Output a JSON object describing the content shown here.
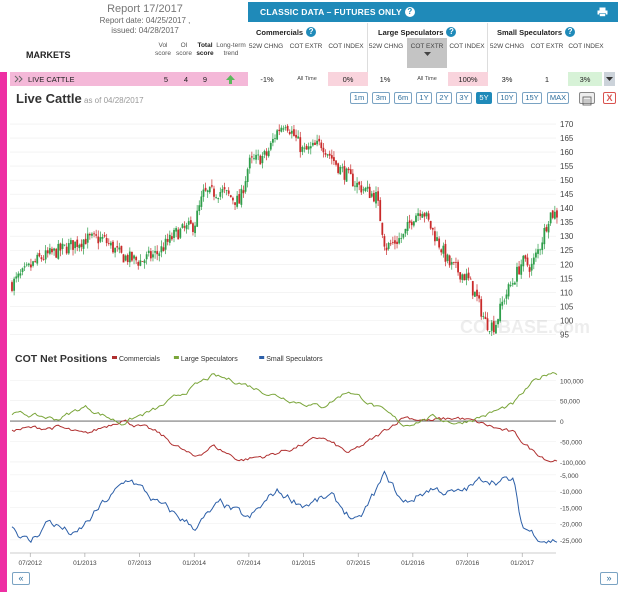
{
  "report": {
    "title": "Report 17/2017",
    "report_date": "Report date: 04/25/2017 ,",
    "issued": "issued: 04/28/2017"
  },
  "markets_label": "MARKETS",
  "metric_headers": [
    "Vol score",
    "OI score",
    "Total score",
    "Long-term trend"
  ],
  "classic_title": "CLASSIC DATA – FUTURES ONLY",
  "help_glyph": "?",
  "groups": [
    {
      "title": "Commercials",
      "cols": [
        "52W CHNG",
        "COT EXTR",
        "COT INDEX"
      ]
    },
    {
      "title": "Large Speculators",
      "cols": [
        "52W CHNG",
        "COT EXTR",
        "COT INDEX"
      ]
    },
    {
      "title": "Small Speculators",
      "cols": [
        "52W CHNG",
        "COT EXTR",
        "COT INDEX"
      ]
    }
  ],
  "row": {
    "name": "LIVE CATTLE",
    "vol": "5",
    "oi": "4",
    "total": "9",
    "trend_icon": "arrow-up-icon",
    "comm_chng": "-1%",
    "comm_extr": "All Time",
    "comm_index": "0%",
    "lspec_chng": "1%",
    "lspec_extr": "All Time",
    "lspec_index": "100%",
    "sspec_chng": "3%",
    "sspec_extr": "1",
    "sspec_index": "3%",
    "colors": {
      "row_name_bg": "#f4b8d8",
      "index_low_bg": "#f9d4dd",
      "index_high_bg": "#f9d4dd",
      "sspec_index_bg": "#d7f2d7",
      "trend_arrow": "#5cb85c"
    }
  },
  "chart_title": "Live Cattle",
  "as_of": "as of 04/28/2017",
  "range_buttons": [
    "1m",
    "3m",
    "6m",
    "1Y",
    "2Y",
    "3Y",
    "5Y",
    "10Y",
    "15Y",
    "MAX"
  ],
  "active_range": "5Y",
  "close_glyph": "X",
  "watermark": "COTBASE.com",
  "nav": {
    "prev": "«",
    "next": "»"
  },
  "chart_data": [
    {
      "type": "candlestick",
      "title": "Live Cattle",
      "ylim": [
        93,
        175
      ],
      "yticks": [
        95,
        100,
        105,
        110,
        115,
        120,
        125,
        130,
        135,
        140,
        145,
        150,
        155,
        160,
        165,
        170
      ],
      "colors": {
        "up": "#2e9e4a",
        "down": "#c92a2a"
      },
      "x_weeks": {
        "start": "2012-05",
        "end": "2017-04"
      },
      "close_anchors": [
        [
          "2012-05",
          113
        ],
        [
          "2012-08",
          122
        ],
        [
          "2012-11",
          126
        ],
        [
          "2013-01",
          129
        ],
        [
          "2013-03",
          129
        ],
        [
          "2013-05",
          123
        ],
        [
          "2013-07",
          121
        ],
        [
          "2013-09",
          124
        ],
        [
          "2013-11",
          131
        ],
        [
          "2014-01",
          134
        ],
        [
          "2014-02",
          145
        ],
        [
          "2014-04",
          146
        ],
        [
          "2014-06",
          142
        ],
        [
          "2014-07",
          156
        ],
        [
          "2014-09",
          159
        ],
        [
          "2014-10",
          167
        ],
        [
          "2014-11",
          171
        ],
        [
          "2015-01",
          160
        ],
        [
          "2015-03",
          163
        ],
        [
          "2015-05",
          154
        ],
        [
          "2015-07",
          148
        ],
        [
          "2015-09",
          144
        ],
        [
          "2015-10",
          126
        ],
        [
          "2015-12",
          130
        ],
        [
          "2016-01",
          137
        ],
        [
          "2016-02",
          140
        ],
        [
          "2016-03",
          133
        ],
        [
          "2016-05",
          120
        ],
        [
          "2016-07",
          115
        ],
        [
          "2016-08",
          108
        ],
        [
          "2016-09",
          99
        ],
        [
          "2016-10",
          98
        ],
        [
          "2016-11",
          108
        ],
        [
          "2016-12",
          114
        ],
        [
          "2017-01",
          121
        ],
        [
          "2017-02",
          119
        ],
        [
          "2017-03",
          127
        ],
        [
          "2017-04",
          138
        ]
      ]
    },
    {
      "type": "line",
      "title": "COT Net Positions",
      "legend": [
        "Commercials",
        "Large Speculators",
        "Small Speculators"
      ],
      "series_colors": [
        "#b03030",
        "#7aa53a",
        "#2c5fa8"
      ],
      "upper_ylim": [
        -110000,
        130000
      ],
      "upper_yticks": [
        100000,
        50000,
        0,
        -50000,
        -100000
      ],
      "upper_ytick_labels": [
        "100,000",
        "50,000",
        "0",
        "-50,000",
        "-100,000"
      ],
      "lower_ylim": [
        -27500,
        -3500
      ],
      "lower_yticks": [
        -5000,
        -10000,
        -15000,
        -20000,
        -25000
      ],
      "lower_ytick_labels": [
        "-5,000",
        "-10,000",
        "-15,000",
        "-20,000",
        "-25,000"
      ],
      "x_tick_labels": [
        "07/2012",
        "01/2013",
        "07/2013",
        "01/2014",
        "07/2014",
        "01/2015",
        "07/2015",
        "01/2016",
        "07/2016",
        "01/2017"
      ],
      "x_tick_dates": [
        "2012-07",
        "2013-01",
        "2013-07",
        "2014-01",
        "2014-07",
        "2015-01",
        "2015-07",
        "2016-01",
        "2016-07",
        "2017-01"
      ],
      "series": [
        {
          "name": "Commercials",
          "anchors": [
            [
              "2012-05",
              -20000
            ],
            [
              "2012-10",
              -15000
            ],
            [
              "2013-01",
              -35000
            ],
            [
              "2013-05",
              5000
            ],
            [
              "2013-09",
              -30000
            ],
            [
              "2014-01",
              -90000
            ],
            [
              "2014-03",
              -60000
            ],
            [
              "2014-06",
              -95000
            ],
            [
              "2014-09",
              -85000
            ],
            [
              "2014-12",
              -65000
            ],
            [
              "2015-03",
              -40000
            ],
            [
              "2015-06",
              -80000
            ],
            [
              "2015-09",
              -40000
            ],
            [
              "2015-12",
              12000
            ],
            [
              "2016-03",
              0
            ],
            [
              "2016-06",
              8000
            ],
            [
              "2016-09",
              -10000
            ],
            [
              "2016-12",
              -30000
            ],
            [
              "2017-02",
              -70000
            ],
            [
              "2017-04",
              -95000
            ]
          ]
        },
        {
          "name": "Large Speculators",
          "anchors": [
            [
              "2012-05",
              20000
            ],
            [
              "2012-10",
              5000
            ],
            [
              "2013-01",
              35000
            ],
            [
              "2013-05",
              -5000
            ],
            [
              "2013-09",
              30000
            ],
            [
              "2014-01",
              85000
            ],
            [
              "2014-03",
              110000
            ],
            [
              "2014-06",
              95000
            ],
            [
              "2014-09",
              70000
            ],
            [
              "2014-12",
              50000
            ],
            [
              "2015-03",
              35000
            ],
            [
              "2015-06",
              75000
            ],
            [
              "2015-09",
              35000
            ],
            [
              "2015-12",
              -10000
            ],
            [
              "2016-03",
              10000
            ],
            [
              "2016-06",
              -5000
            ],
            [
              "2016-09",
              15000
            ],
            [
              "2016-12",
              40000
            ],
            [
              "2017-02",
              90000
            ],
            [
              "2017-04",
              120000
            ]
          ]
        },
        {
          "name": "Small Speculators",
          "anchors": [
            [
              "2012-05",
              -21000
            ],
            [
              "2012-07",
              -26000
            ],
            [
              "2012-09",
              -19000
            ],
            [
              "2012-12",
              -24000
            ],
            [
              "2013-03",
              -14000
            ],
            [
              "2013-06",
              -6000
            ],
            [
              "2013-09",
              -14000
            ],
            [
              "2014-01",
              -21000
            ],
            [
              "2014-04",
              -14000
            ],
            [
              "2014-07",
              -19000
            ],
            [
              "2014-10",
              -10000
            ],
            [
              "2015-01",
              -14000
            ],
            [
              "2015-04",
              -12000
            ],
            [
              "2015-07",
              -20000
            ],
            [
              "2015-10",
              -5000
            ],
            [
              "2015-12",
              -14000
            ],
            [
              "2016-03",
              -9000
            ],
            [
              "2016-06",
              -11000
            ],
            [
              "2016-09",
              -6000
            ],
            [
              "2016-12",
              -7000
            ],
            [
              "2017-01",
              -21000
            ],
            [
              "2017-03",
              -24000
            ],
            [
              "2017-04",
              -25000
            ]
          ]
        }
      ]
    }
  ]
}
